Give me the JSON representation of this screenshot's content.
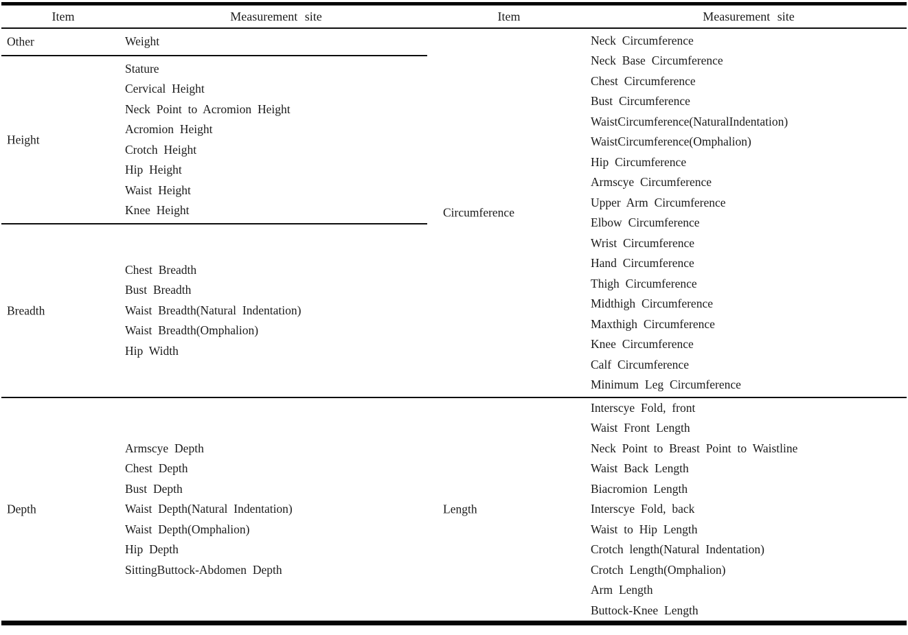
{
  "colors": {
    "text": "#1b1b1b",
    "rule": "#000000",
    "background": "#ffffff"
  },
  "table": {
    "column_headers": [
      "Item",
      "Measurement site",
      "Item",
      "Measurement site"
    ],
    "bands": [
      {
        "left": [
          {
            "item": "Other",
            "sites": [
              "Weight"
            ]
          },
          {
            "item": "Height",
            "sites": [
              "Stature",
              "Cervical Height",
              "Neck Point to Acromion Height",
              "Acromion Height",
              "Crotch Height",
              "Hip Height",
              "Waist Height",
              "Knee Height"
            ]
          },
          {
            "item": "Breadth",
            "sites": [
              "Chest Breadth",
              "Bust Breadth",
              "Waist Breadth(Natural Indentation)",
              "Waist Breadth(Omphalion)",
              "Hip Width"
            ]
          }
        ],
        "right": [
          {
            "item": "Circumference",
            "sites": [
              "Neck Circumference",
              "Neck Base Circumference",
              "Chest Circumference",
              "Bust Circumference",
              "WaistCircumference(NaturalIndentation)",
              "WaistCircumference(Omphalion)",
              "Hip Circumference",
              "Armscye Circumference",
              "Upper Arm Circumference",
              "Elbow Circumference",
              "Wrist Circumference",
              "Hand Circumference",
              "Thigh Circumference",
              "Midthigh Circumference",
              "Maxthigh Circumference",
              "Knee Circumference",
              "Calf Circumference",
              "Minimum Leg Circumference"
            ]
          }
        ]
      },
      {
        "left": [
          {
            "item": "Depth",
            "sites": [
              "Armscye Depth",
              "Chest Depth",
              "Bust Depth",
              "Waist Depth(Natural Indentation)",
              "Waist Depth(Omphalion)",
              "Hip Depth",
              "SittingButtock-Abdomen Depth"
            ]
          }
        ],
        "right": [
          {
            "item": "Length",
            "sites": [
              "Interscye Fold, front",
              "Waist Front Length",
              "Neck Point to Breast Point to Waistline",
              "Waist Back Length",
              "Biacromion Length",
              "Interscye Fold, back",
              "Waist to Hip Length",
              "Crotch length(Natural Indentation)",
              "Crotch Length(Omphalion)",
              "Arm Length",
              "Buttock-Knee Length"
            ]
          }
        ]
      }
    ]
  }
}
